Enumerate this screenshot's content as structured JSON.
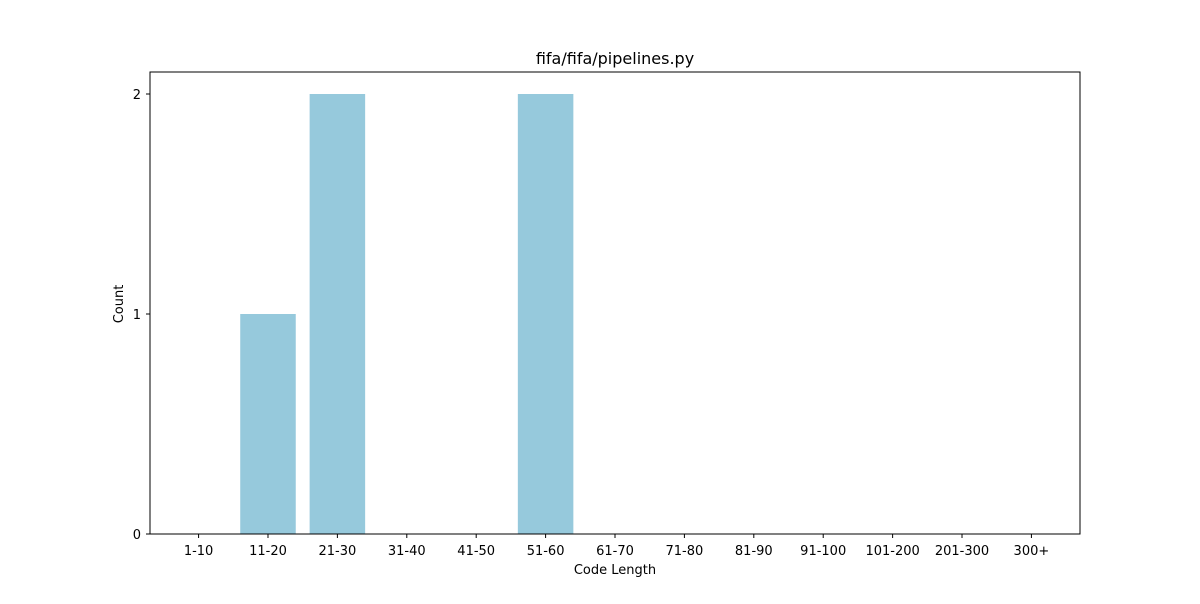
{
  "chart_data": {
    "type": "bar",
    "title": "fifa/fifa/pipelines.py",
    "xlabel": "Code Length",
    "ylabel": "Count",
    "categories": [
      "1-10",
      "11-20",
      "21-30",
      "31-40",
      "41-50",
      "51-60",
      "61-70",
      "71-80",
      "81-90",
      "91-100",
      "101-200",
      "201-300",
      "300+"
    ],
    "values": [
      0,
      1,
      2,
      0,
      0,
      2,
      0,
      0,
      0,
      0,
      0,
      0,
      0
    ],
    "yticks": [
      "0",
      "1",
      "2"
    ],
    "ylim": [
      0,
      2.1
    ],
    "grid": false,
    "bar_color": "#96c9dc"
  }
}
